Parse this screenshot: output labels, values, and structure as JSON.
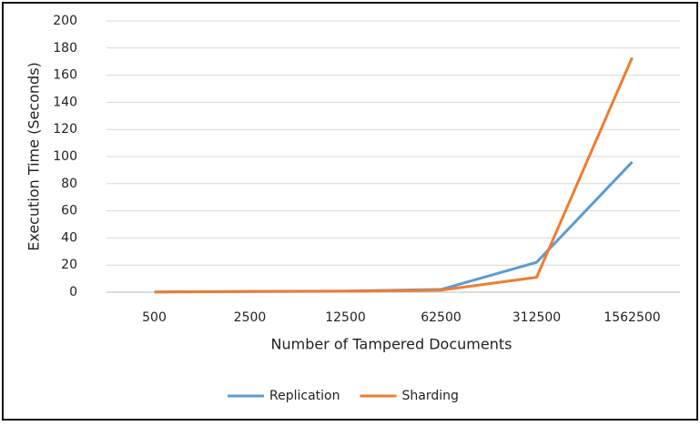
{
  "chart_data": {
    "type": "line",
    "x_label": "Number of Tampered Documents",
    "y_label": "Execution Time (Seconds)",
    "categories": [
      "500",
      "2500",
      "12500",
      "62500",
      "312500",
      "1562500"
    ],
    "series": [
      {
        "name": "Replication",
        "color": "#5b9bd5",
        "values": [
          0.2,
          0.5,
          0.8,
          2,
          22,
          96
        ]
      },
      {
        "name": "Sharding",
        "color": "#ed7d31",
        "values": [
          0.2,
          0.5,
          0.7,
          1.5,
          11,
          173
        ]
      }
    ],
    "ylim": [
      0,
      200
    ],
    "yticks": [
      0,
      20,
      40,
      60,
      80,
      100,
      120,
      140,
      160,
      180,
      200
    ],
    "grid": true,
    "legend": "bottom"
  }
}
